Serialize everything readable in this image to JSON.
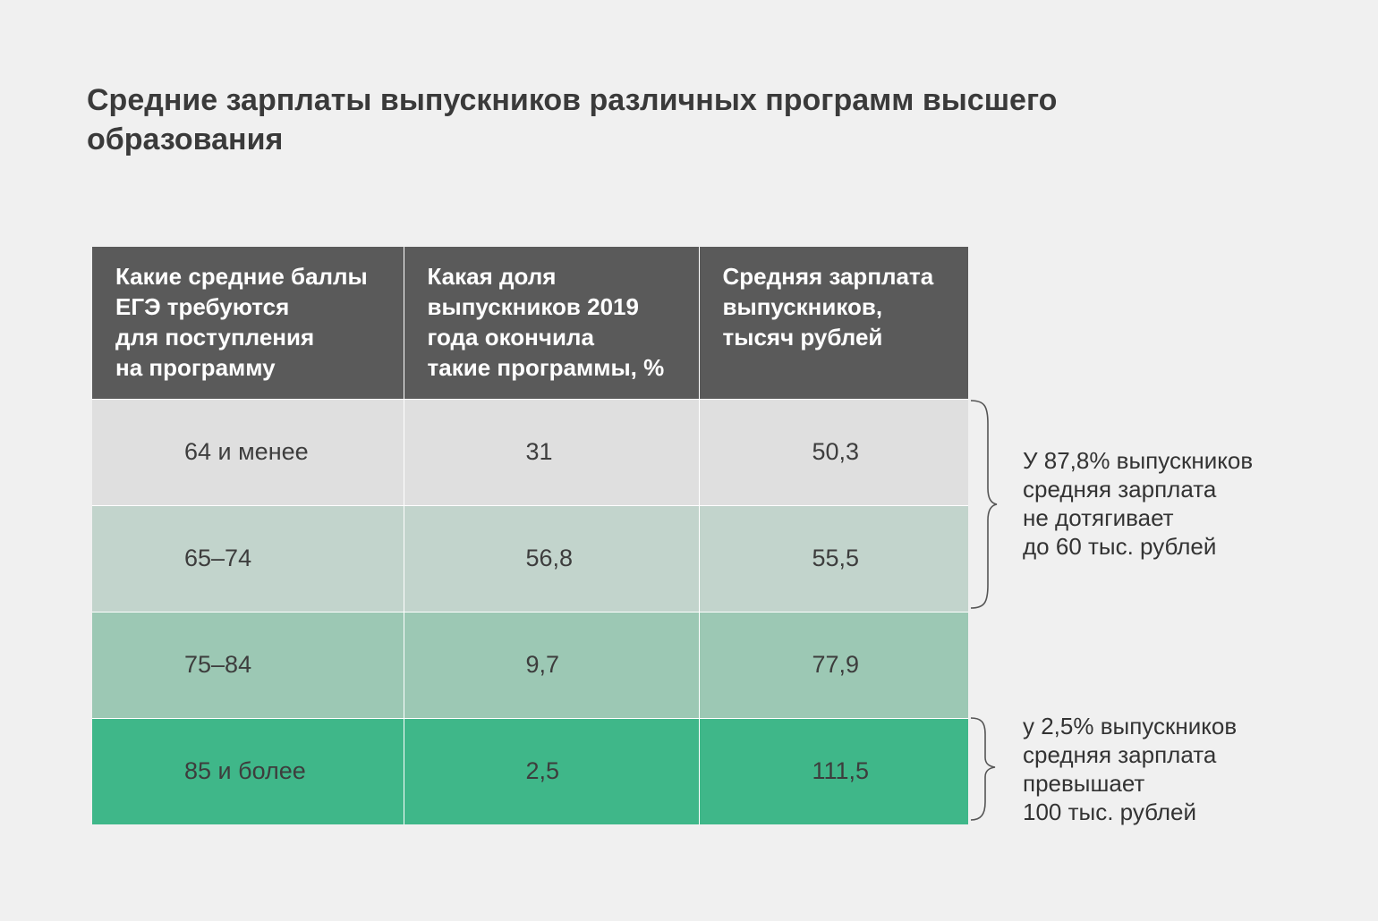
{
  "title": "Средние зарплаты выпускников различных программ высшего образования",
  "colors": {
    "header_bg": "#5a5a5a",
    "rows": [
      "#dfdfdf",
      "#c2d4cc",
      "#9cc8b4",
      "#3fb789"
    ],
    "brace": "#555555"
  },
  "chart_data": {
    "type": "table",
    "columns": [
      "Какие средние баллы ЕГЭ требуются для поступления на программу",
      "Какая доля выпускников 2019 года окончила такие программы, %",
      "Средняя зарплата выпускников, тысяч рублей"
    ],
    "header_lines": [
      [
        "Какие средние баллы",
        "ЕГЭ требуются",
        "для поступления",
        "на программу"
      ],
      [
        "Какая доля",
        "выпускников 2019",
        "года окончила",
        "такие программы, %"
      ],
      [
        "Средняя зарплата",
        "выпускников,",
        "тысяч рублей"
      ]
    ],
    "rows": [
      {
        "score": "64 и менее",
        "share": "31",
        "salary": "50,3"
      },
      {
        "score": "65–74",
        "share": "56,8",
        "salary": "55,5"
      },
      {
        "score": "75–84",
        "share": "9,7",
        "salary": "77,9"
      },
      {
        "score": "85 и более",
        "share": "2,5",
        "salary": "111,5"
      }
    ],
    "share_values": [
      31,
      56.8,
      9.7,
      2.5
    ],
    "salary_values": [
      50.3,
      55.5,
      77.9,
      111.5
    ]
  },
  "annotations": {
    "low": {
      "rows": [
        0,
        1
      ],
      "lines": [
        "У 87,8% выпускников",
        "средняя зарплата",
        "не дотягивает",
        "до 60 тыс. рублей"
      ]
    },
    "high": {
      "rows": [
        3
      ],
      "lines": [
        "у 2,5% выпускников",
        "средняя зарплата",
        "превышает",
        "100 тыс. рублей"
      ]
    }
  }
}
